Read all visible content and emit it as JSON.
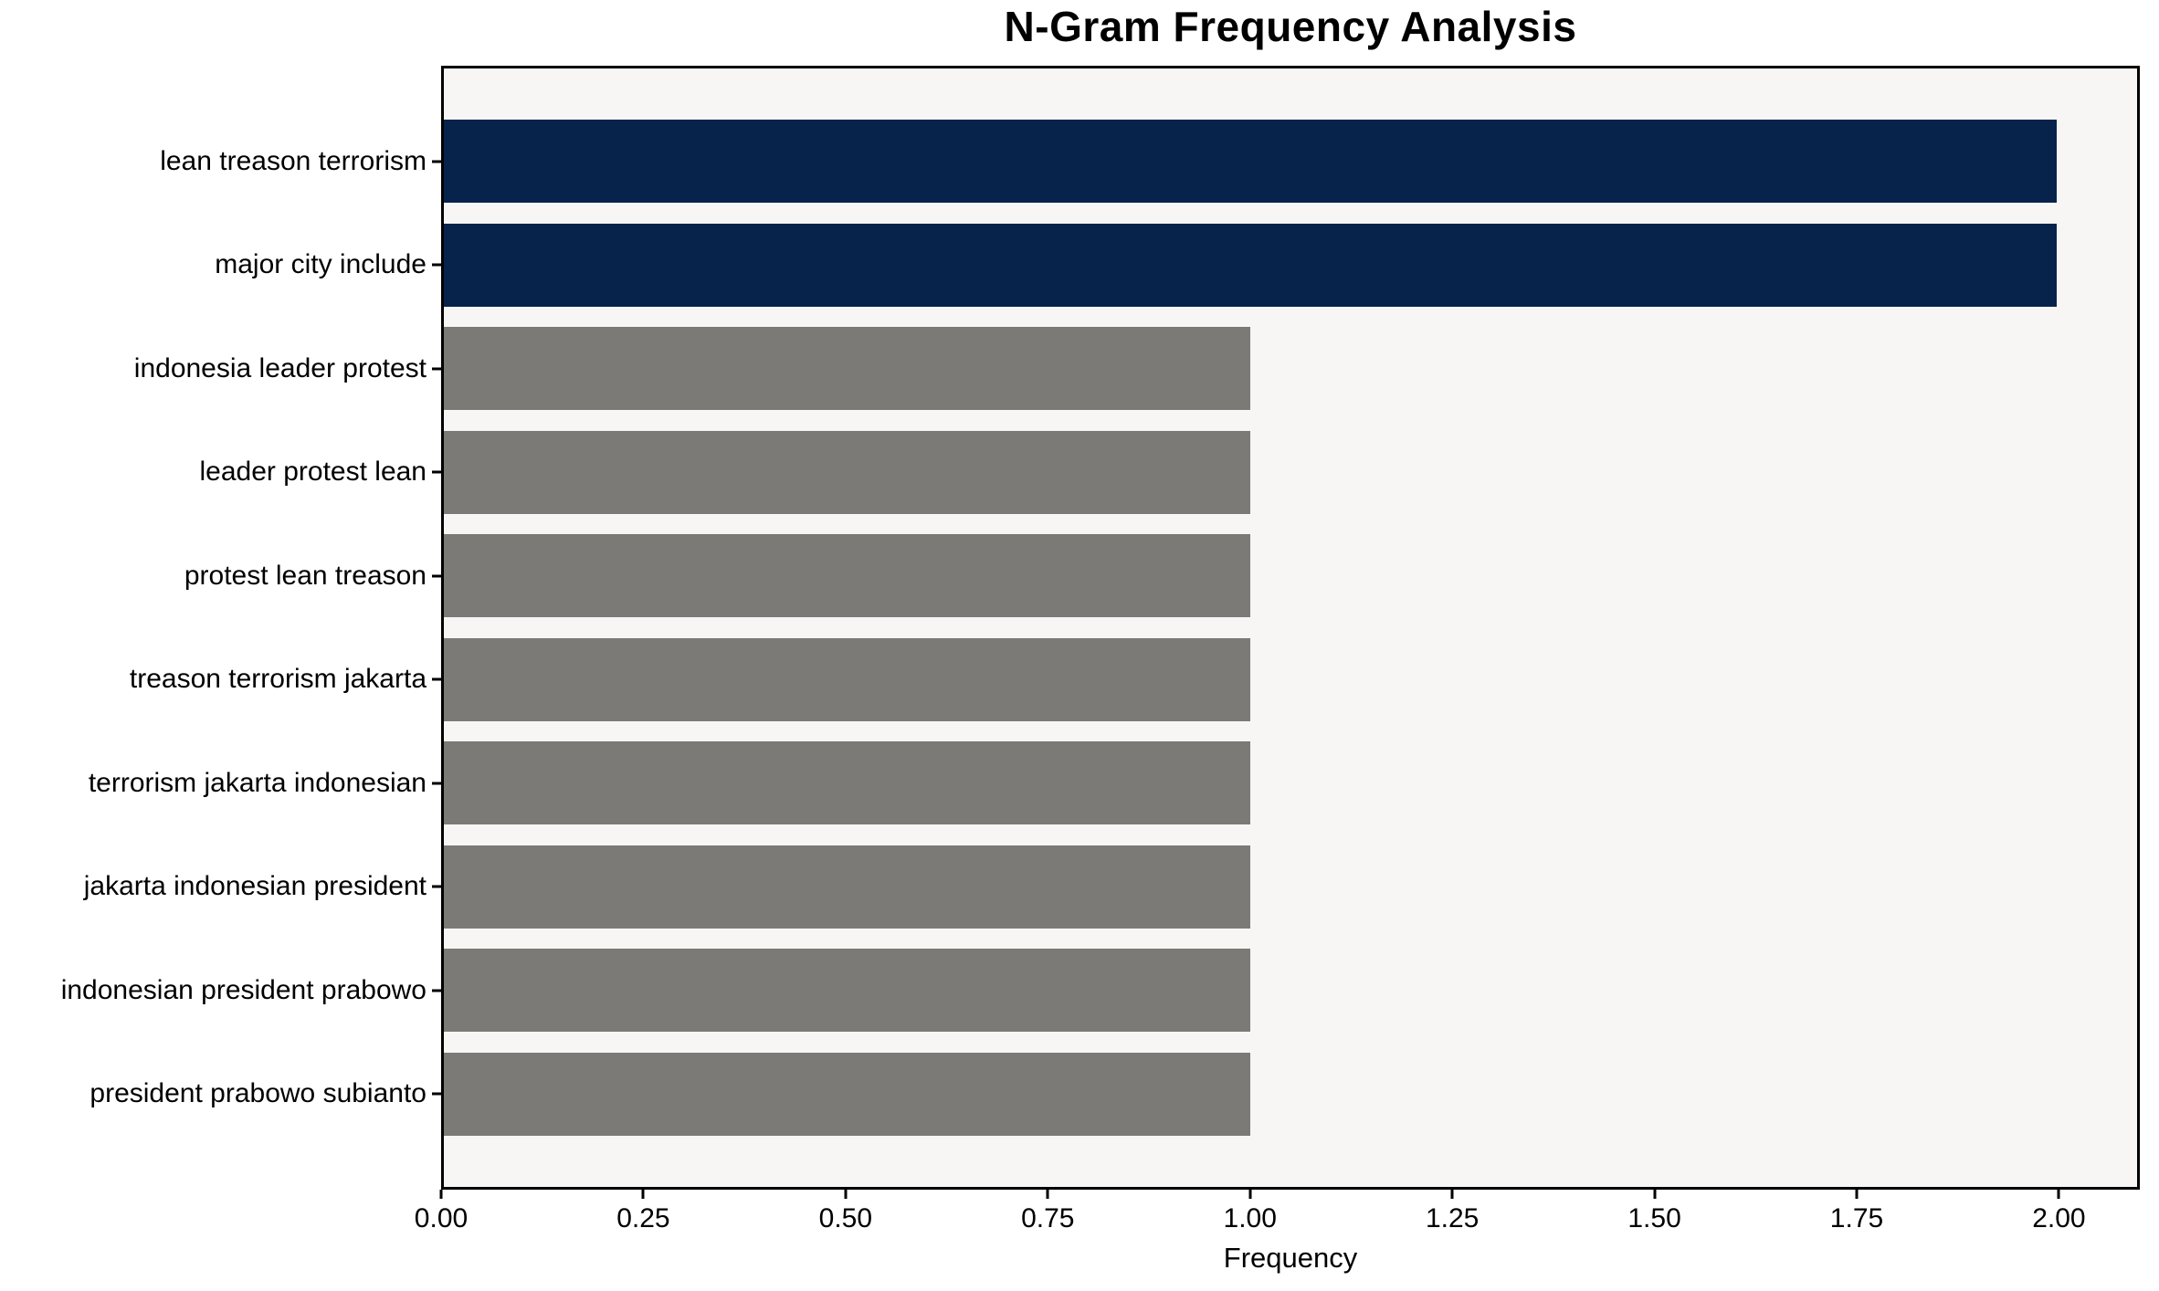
{
  "chart_data": {
    "type": "bar",
    "orientation": "horizontal",
    "title": "N-Gram Frequency Analysis",
    "xlabel": "Frequency",
    "categories": [
      "lean treason terrorism",
      "major city include",
      "indonesia leader protest",
      "leader protest lean",
      "protest lean treason",
      "treason terrorism jakarta",
      "terrorism jakarta indonesian",
      "jakarta indonesian president",
      "indonesian president prabowo",
      "president prabowo subianto"
    ],
    "values": [
      2,
      2,
      1,
      1,
      1,
      1,
      1,
      1,
      1,
      1
    ],
    "bar_colors": [
      "#07234b",
      "#07234b",
      "#7b7a76",
      "#7b7a76",
      "#7b7a76",
      "#7b7a76",
      "#7b7a76",
      "#7b7a76",
      "#7b7a76",
      "#7b7a76"
    ],
    "xtick_labels": [
      "0.00",
      "0.25",
      "0.50",
      "0.75",
      "1.00",
      "1.25",
      "1.50",
      "1.75",
      "2.00"
    ],
    "xtick_values": [
      0,
      0.25,
      0.5,
      0.75,
      1.0,
      1.25,
      1.5,
      1.75,
      2.0
    ],
    "xlim": [
      0,
      2.1
    ],
    "grid": false,
    "colors": {
      "highlight_bar": "#07234b",
      "base_bar": "#7b7a76",
      "plot_background": "#f7f6f5",
      "spine": "#000000",
      "text": "#000000",
      "figure_background": "#ffffff"
    }
  }
}
